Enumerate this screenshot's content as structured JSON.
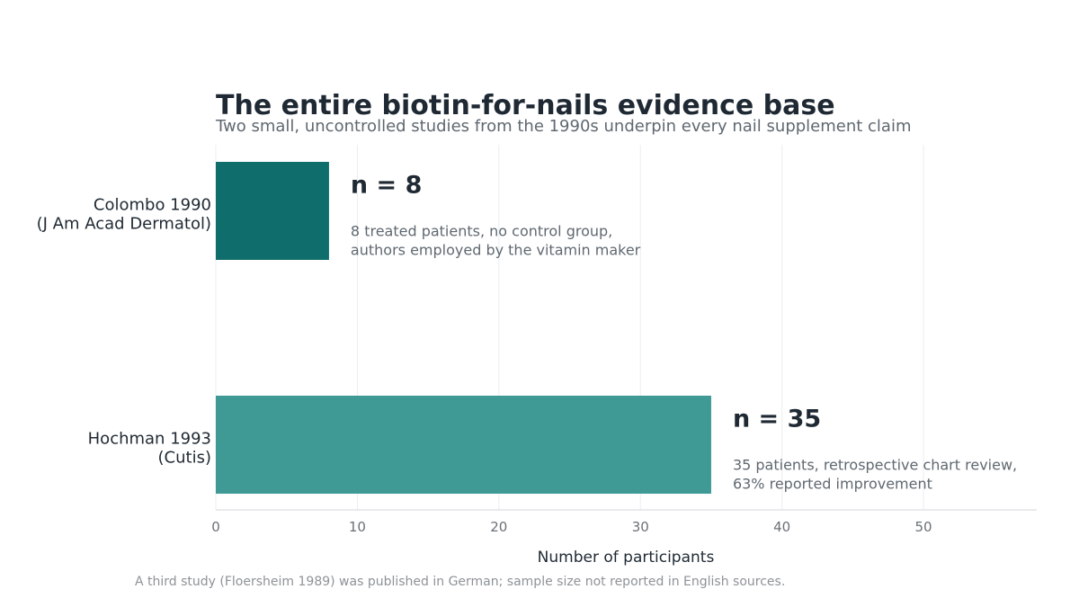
{
  "chart_data": {
    "type": "bar",
    "orientation": "horizontal",
    "title": "The entire biotin-for-nails evidence base",
    "subtitle": "Two small, uncontrolled studies from the 1990s underpin every nail supplement claim",
    "xlabel": "Number of participants",
    "ylabel": "",
    "xlim": [
      0,
      58
    ],
    "xticks": [
      0,
      10,
      20,
      30,
      40,
      50
    ],
    "grid": true,
    "categories": [
      [
        "Colombo 1990",
        "(J Am Acad Dermatol)"
      ],
      [
        "Hochman 1993",
        "(Cutis)"
      ]
    ],
    "values": [
      8,
      35
    ],
    "colors": [
      "#0f6e6b",
      "#3f9a96"
    ],
    "annotations": [
      {
        "value_label": "n = 8",
        "note": [
          "8 treated patients, no control group,",
          "authors employed by the vitamin maker"
        ]
      },
      {
        "value_label": "n = 35",
        "note": [
          "35 patients, retrospective chart review,",
          "63% reported improvement"
        ]
      }
    ],
    "footnote": "A third study (Floersheim 1989) was published in German; sample size not reported in English sources."
  }
}
